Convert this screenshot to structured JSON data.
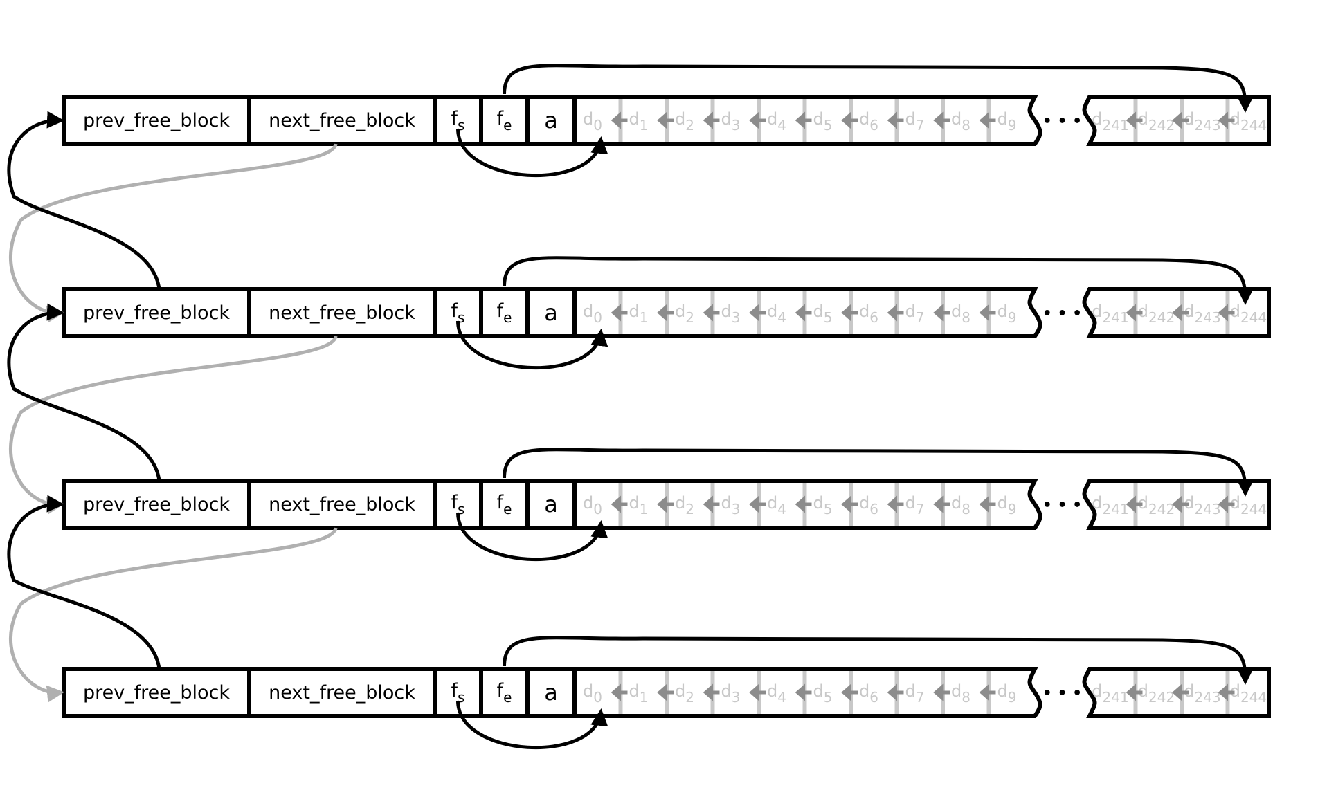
{
  "diagram": {
    "blocks": [
      {
        "prev_label": "prev_free_block",
        "next_label": "next_free_block",
        "fs": "f",
        "fs_sub": "s",
        "fe": "f",
        "fe_sub": "e",
        "a": "a"
      },
      {
        "prev_label": "prev_free_block",
        "next_label": "next_free_block",
        "fs": "f",
        "fs_sub": "s",
        "fe": "f",
        "fe_sub": "e",
        "a": "a"
      },
      {
        "prev_label": "prev_free_block",
        "next_label": "next_free_block",
        "fs": "f",
        "fs_sub": "s",
        "fe": "f",
        "fe_sub": "e",
        "a": "a"
      },
      {
        "prev_label": "prev_free_block",
        "next_label": "next_free_block",
        "fs": "f",
        "fs_sub": "s",
        "fe": "f",
        "fe_sub": "e",
        "a": "a"
      }
    ],
    "data_cells_first": [
      "0",
      "1",
      "2",
      "3",
      "4",
      "5",
      "6",
      "7",
      "8",
      "9"
    ],
    "data_cells_last": [
      "241",
      "242",
      "243",
      "244"
    ],
    "data_letter": "d",
    "ellipsis": "• • •",
    "colors": {
      "line": "#000000",
      "inactive_pointer": "#b0b0b0",
      "data_text": "#c8c8c8",
      "data_arrow": "#8c8c8c"
    }
  }
}
